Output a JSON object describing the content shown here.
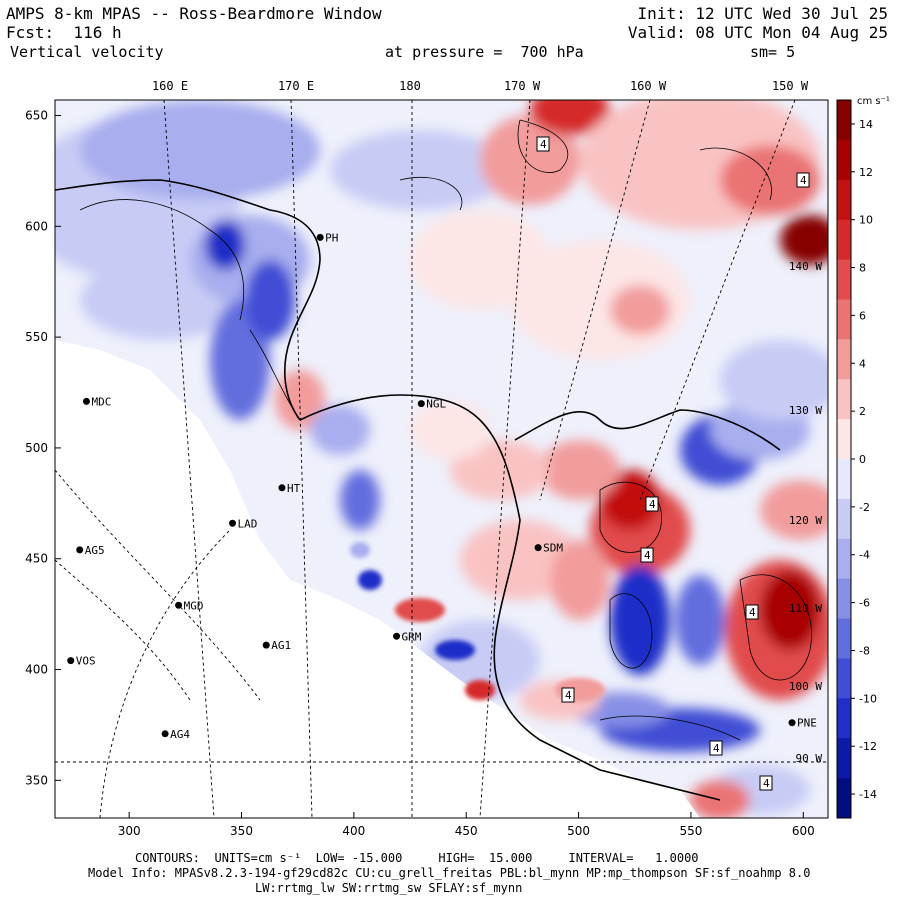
{
  "header": {
    "model_title": "AMPS 8-km MPAS -- Ross-Beardmore Window",
    "forecast_hour": "Fcst:  116 h",
    "field_name": "Vertical velocity",
    "init_time": "Init: 12 UTC Wed 30 Jul 25",
    "valid_time": "Valid: 08 UTC Mon 04 Aug 25",
    "pressure_level": "at pressure =  700 hPa",
    "smoothing": "sm= 5"
  },
  "footer": {
    "contours_line": "CONTOURS:  UNITS=cm s⁻¹  LOW= -15.000     HIGH=  15.000     INTERVAL=   1.0000",
    "model_info_line": "Model Info: MPASv8.2.3-194-gf29cd82c CU:cu_grell_freitas PBL:bl_mynn MP:mp_thompson SF:sf_noahmp 8.0",
    "model_info_line2": "LW:rrtmg_lw SW:rrtmg_sw SFLAY:sf_mynn"
  },
  "chart_data": {
    "type": "heatmap",
    "title": "Vertical velocity",
    "units": "cm s⁻¹",
    "x_ticks": [
      300,
      350,
      400,
      450,
      500,
      550,
      600
    ],
    "y_ticks": [
      350,
      400,
      450,
      500,
      550,
      600,
      650
    ],
    "xlim": [
      267,
      611
    ],
    "ylim": [
      333,
      657
    ],
    "lon_labels": [
      "160 E",
      "170 E",
      "180",
      "170 W",
      "160 W",
      "150 W"
    ],
    "right_lon_labels": [
      "140 W",
      "130 W",
      "120 W",
      "110 W",
      "100 W",
      "90 W"
    ],
    "colorbar": {
      "label": "cm s⁻¹",
      "ticks": [
        14,
        12,
        10,
        8,
        6,
        4,
        2,
        0,
        -2,
        -4,
        -6,
        -8,
        -10,
        -12,
        -14
      ],
      "range": [
        -15,
        15
      ],
      "colors_positive": [
        "#fde6e6",
        "#f9c3c3",
        "#f29c9c",
        "#ea7373",
        "#e14c4c",
        "#d62929",
        "#c31010",
        "#a80000",
        "#860000"
      ],
      "colors_negative": [
        "#e6e8fb",
        "#c8ccf5",
        "#a8aeee",
        "#868fe6",
        "#636ede",
        "#3f4ed4",
        "#1f2fc7",
        "#0d1aa8",
        "#020d80"
      ]
    },
    "stations": [
      {
        "name": "MDC",
        "x": 281,
        "y": 521
      },
      {
        "name": "NGL",
        "x": 430,
        "y": 520
      },
      {
        "name": "AG5",
        "x": 278,
        "y": 454
      },
      {
        "name": "LAD",
        "x": 346,
        "y": 466
      },
      {
        "name": "SDM",
        "x": 482,
        "y": 455
      },
      {
        "name": "MGD",
        "x": 322,
        "y": 429
      },
      {
        "name": "AG1",
        "x": 361,
        "y": 411
      },
      {
        "name": "GRM",
        "x": 419,
        "y": 415
      },
      {
        "name": "VOS",
        "x": 274,
        "y": 404
      },
      {
        "name": "AG4",
        "x": 316,
        "y": 371
      },
      {
        "name": "PNE",
        "x": 595,
        "y": 376
      },
      {
        "name": "HT",
        "x": 368,
        "y": 482
      },
      {
        "name": "PH",
        "x": 385,
        "y": 595
      }
    ],
    "grid": true
  }
}
